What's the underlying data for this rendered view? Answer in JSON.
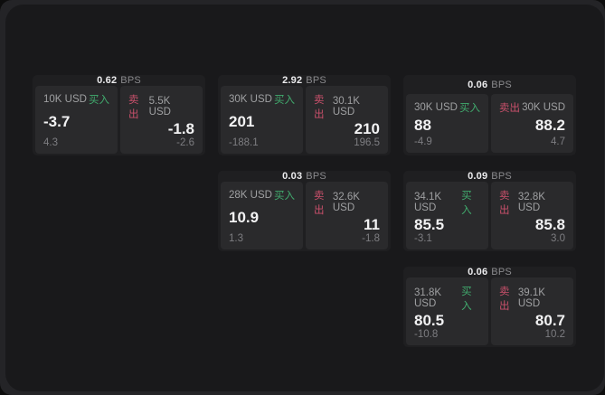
{
  "labels": {
    "bps": "BPS",
    "buy": "买入",
    "sell": "卖出"
  },
  "colors": {
    "buy_green": "#41ab6e",
    "sell_red": "#c9506b",
    "content_background": "#19191b",
    "card_background": "#1f1f21",
    "panel_background": "#2a2a2c"
  },
  "cards": [
    {
      "bps": "0.62",
      "buy": {
        "size": "10K USD",
        "price": "-3.7",
        "delta": "4.3"
      },
      "sell": {
        "size": "5.5K USD",
        "price": "-1.8",
        "delta": "-2.6"
      }
    },
    {
      "bps": "2.92",
      "buy": {
        "size": "30K USD",
        "price": "201",
        "delta": "-188.1"
      },
      "sell": {
        "size": "30.1K USD",
        "price": "210",
        "delta": "196.5"
      }
    },
    {
      "bps": "0.06",
      "buy": {
        "size": "30K USD",
        "price": "88",
        "delta": "-4.9"
      },
      "sell": {
        "size": "30K USD",
        "price": "88.2",
        "delta": "4.7"
      }
    },
    {
      "bps": "0.03",
      "buy": {
        "size": "28K USD",
        "price": "10.9",
        "delta": "1.3"
      },
      "sell": {
        "size": "32.6K USD",
        "price": "11",
        "delta": "-1.8"
      }
    },
    {
      "bps": "0.09",
      "buy": {
        "size": "34.1K USD",
        "price": "85.5",
        "delta": "-3.1"
      },
      "sell": {
        "size": "32.8K USD",
        "price": "85.8",
        "delta": "3.0"
      }
    },
    {
      "bps": "0.06",
      "buy": {
        "size": "31.8K USD",
        "price": "80.5",
        "delta": "-10.8"
      },
      "sell": {
        "size": "39.1K USD",
        "price": "80.7",
        "delta": "10.2"
      }
    }
  ]
}
